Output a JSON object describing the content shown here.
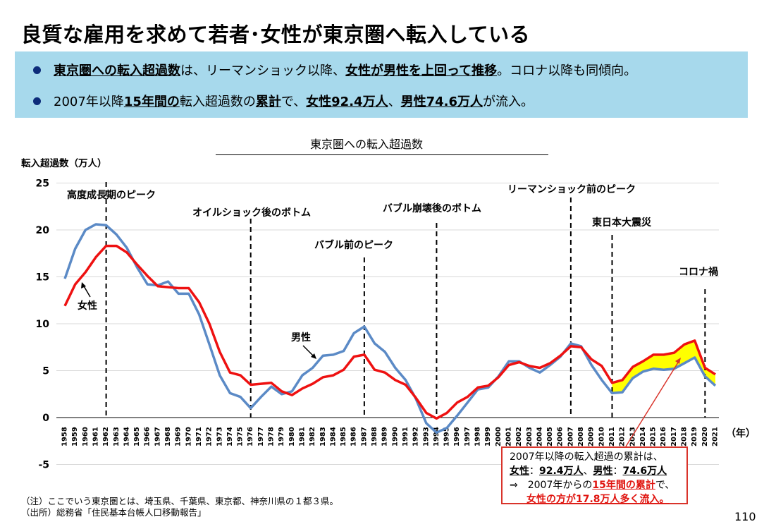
{
  "title": "良質な雇用を求めて若者･女性が東京圏へ転入している",
  "summary": {
    "bullet1": [
      {
        "text": "東京圏への転入超過数",
        "style": "emph"
      },
      {
        "text": "は、リーマンショック以降、",
        "style": "plain"
      },
      {
        "text": "女性が男性を上回って推移",
        "style": "emph"
      },
      {
        "text": "。コロナ以降も同傾向。",
        "style": "plain"
      }
    ],
    "bullet2": [
      {
        "text": "2007年以降",
        "style": "plain"
      },
      {
        "text": "15年間の",
        "style": "emph"
      },
      {
        "text": "転入超過数の",
        "style": "plain"
      },
      {
        "text": "累計",
        "style": "emph"
      },
      {
        "text": "で、",
        "style": "plain"
      },
      {
        "text": "女性92.4万人",
        "style": "emph"
      },
      {
        "text": "、",
        "style": "plain"
      },
      {
        "text": "男性74.6万人",
        "style": "emph"
      },
      {
        "text": "が流入。",
        "style": "plain"
      }
    ]
  },
  "chart_data": {
    "type": "line",
    "title": "東京圏への転入超過数",
    "ylabel": "転入超過数（万人）",
    "xlabel": "（年）",
    "ylim": [
      -5,
      25
    ],
    "yticks": [
      -5,
      0,
      5,
      10,
      15,
      20,
      25
    ],
    "grid": true,
    "x": [
      "1958",
      "1959",
      "1960",
      "1961",
      "1962",
      "1963",
      "1964",
      "1965",
      "1966",
      "1967",
      "1968",
      "1969",
      "1970",
      "1971",
      "1972",
      "1973",
      "1974",
      "1975",
      "1976",
      "1977",
      "1978",
      "1979",
      "1980",
      "1981",
      "1982",
      "1983",
      "1984",
      "1985",
      "1986",
      "1987",
      "1988",
      "1989",
      "1990",
      "1991",
      "1992",
      "1993",
      "1994",
      "1995",
      "1996",
      "1997",
      "1998",
      "1999",
      "2000",
      "2001",
      "2002",
      "2003",
      "2004",
      "2005",
      "2006",
      "2007",
      "2008",
      "2009",
      "2010",
      "2011",
      "2012",
      "2013",
      "2014",
      "2015",
      "2016",
      "2017",
      "2018",
      "2019",
      "2020",
      "2021"
    ],
    "series": [
      {
        "name": "男性",
        "color": "#5b8ac6",
        "values": [
          14.8,
          18.0,
          20.0,
          20.6,
          20.5,
          19.5,
          18.1,
          16.0,
          14.2,
          14.1,
          14.5,
          13.2,
          13.2,
          11.0,
          7.8,
          4.5,
          2.6,
          2.2,
          1.0,
          2.2,
          3.3,
          2.5,
          2.8,
          4.5,
          5.3,
          6.6,
          6.7,
          7.1,
          9.0,
          9.7,
          7.9,
          7.0,
          5.3,
          4.0,
          2.0,
          -0.6,
          -1.6,
          -1.1,
          0.2,
          1.6,
          3.0,
          3.2,
          4.4,
          6.0,
          6.0,
          5.3,
          4.8,
          5.6,
          6.5,
          7.9,
          7.6,
          5.6,
          4.0,
          2.6,
          2.7,
          4.2,
          4.9,
          5.2,
          5.1,
          5.2,
          5.8,
          6.4,
          4.4,
          3.4
        ]
      },
      {
        "name": "女性",
        "color": "#ee1111",
        "values": [
          11.9,
          14.2,
          15.5,
          17.1,
          18.3,
          18.3,
          17.6,
          16.3,
          15.1,
          14.0,
          13.9,
          13.8,
          13.8,
          12.3,
          10.0,
          7.0,
          4.8,
          4.5,
          3.5,
          3.6,
          3.7,
          2.8,
          2.4,
          3.1,
          3.6,
          4.3,
          4.5,
          5.1,
          6.5,
          6.7,
          5.1,
          4.8,
          4.0,
          3.5,
          2.1,
          0.5,
          -0.1,
          0.5,
          1.6,
          2.2,
          3.2,
          3.4,
          4.3,
          5.6,
          5.9,
          5.5,
          5.3,
          5.8,
          6.6,
          7.6,
          7.5,
          6.2,
          5.5,
          3.7,
          4.0,
          5.4,
          6.0,
          6.7,
          6.7,
          6.9,
          7.8,
          8.2,
          5.3,
          4.6
        ]
      }
    ],
    "annotations": [
      {
        "label": "高度成長期のピーク",
        "year": "1962"
      },
      {
        "label": "オイルショック後のボトム",
        "year": "1976"
      },
      {
        "label": "バブル前のピーク",
        "year": "1987"
      },
      {
        "label": "バブル崩壊後のボトム",
        "year": "1994"
      },
      {
        "label": "リーマンショック前のピーク",
        "year": "2007"
      },
      {
        "label": "東日本大震災",
        "year": "2011"
      },
      {
        "label": "コロナ禍",
        "year": "2020"
      }
    ],
    "series_labels": [
      {
        "text": "女性"
      },
      {
        "text": "男性"
      }
    ],
    "fill_between": {
      "from": "2011",
      "to": "2021",
      "color": "#ffff00"
    }
  },
  "callout": {
    "line1": "2007年以降の転入超過の累計は、",
    "line2_a": "女性",
    "line2_b": "：",
    "line2_c": "92.4万人",
    "line2_d": "、",
    "line2_e": "男性",
    "line2_f": "：",
    "line2_g": "74.6万人",
    "line3_a": "⇒　2007年からの",
    "line3_b": "15年間の累計",
    "line3_c": "で、",
    "line4": "女性の方が17.8万人多く流入。"
  },
  "notes": {
    "note1": "（注）ここでいう東京圏とは、埼玉県、千葉県、東京都、神奈川県の１都３県。",
    "note2": "（出所）総務省「住民基本台帳人口移動報告」"
  },
  "page_number": "110"
}
